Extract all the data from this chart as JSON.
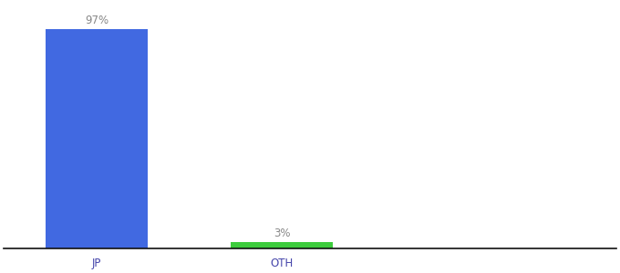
{
  "categories": [
    "JP",
    "OTH"
  ],
  "values": [
    97,
    3
  ],
  "bar_colors": [
    "#4169e1",
    "#3dcc3d"
  ],
  "labels": [
    "97%",
    "3%"
  ],
  "label_color": "#888888",
  "background_color": "#ffffff",
  "ylim": [
    0,
    108
  ],
  "xlabel_fontsize": 8.5,
  "label_fontsize": 8.5,
  "axis_line_color": "#111111",
  "bar_width": 0.55,
  "x_positions": [
    0,
    1
  ],
  "xlim": [
    -0.5,
    2.8
  ]
}
